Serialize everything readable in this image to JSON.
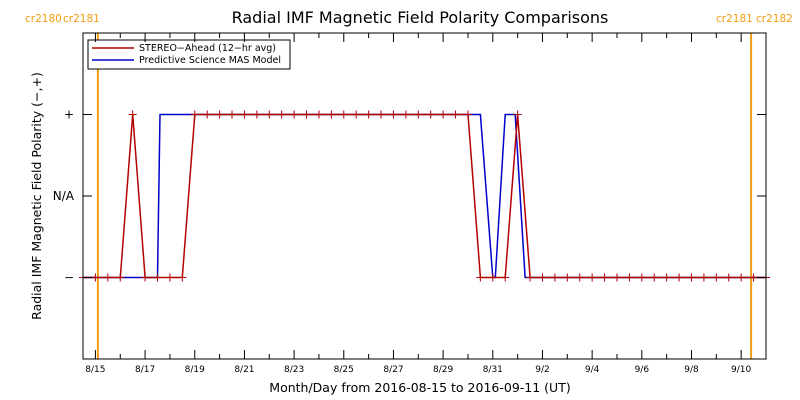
{
  "chart_data": {
    "type": "line",
    "title": "Radial IMF Magnetic Field Polarity Comparisons",
    "xlabel": "Month/Day from 2016-08-15 to 2016-09-11 (UT)",
    "ylabel": "Radial IMF Magnetic Field Polarity (−,+)",
    "x_unit": "days",
    "xlim": [
      -0.5,
      27.0
    ],
    "ylim": [
      -2,
      2
    ],
    "x_ticks": [
      {
        "x": 0,
        "label": "8/15"
      },
      {
        "x": 2,
        "label": "8/17"
      },
      {
        "x": 4,
        "label": "8/19"
      },
      {
        "x": 6,
        "label": "8/21"
      },
      {
        "x": 8,
        "label": "8/23"
      },
      {
        "x": 10,
        "label": "8/25"
      },
      {
        "x": 12,
        "label": "8/27"
      },
      {
        "x": 14,
        "label": "8/29"
      },
      {
        "x": 16,
        "label": "8/31"
      },
      {
        "x": 18,
        "label": "9/2"
      },
      {
        "x": 20,
        "label": "9/4"
      },
      {
        "x": 22,
        "label": "9/6"
      },
      {
        "x": 24,
        "label": "9/8"
      },
      {
        "x": 26,
        "label": "9/10"
      }
    ],
    "y_ticks": [
      {
        "y": 1,
        "label": "+"
      },
      {
        "y": 0,
        "label": "N/A"
      },
      {
        "y": -1,
        "label": "−"
      }
    ],
    "carrington": {
      "color": "#f39c12",
      "left_labels": [
        "cr2180",
        "cr2181"
      ],
      "right_labels": [
        "cr2181",
        "cr2182"
      ],
      "boundaries": [
        0.1,
        26.4
      ]
    },
    "legend": {
      "position": "top-left"
    },
    "series": [
      {
        "name": "STEREO−Ahead (12−hr avg)",
        "color": "#b30000",
        "markers": true,
        "x": [
          -0.5,
          0.0,
          0.5,
          1.0,
          1.5,
          2.0,
          2.5,
          3.0,
          3.5,
          4.0,
          4.5,
          5.0,
          5.5,
          6.0,
          6.5,
          7.0,
          7.5,
          8.0,
          8.5,
          9.0,
          9.5,
          10.0,
          10.5,
          11.0,
          11.5,
          12.0,
          12.5,
          13.0,
          13.5,
          14.0,
          14.5,
          15.0,
          15.5,
          16.0,
          16.5,
          17.0,
          17.5,
          18.0,
          18.5,
          19.0,
          19.5,
          20.0,
          20.5,
          21.0,
          21.5,
          22.0,
          22.5,
          23.0,
          23.5,
          24.0,
          24.5,
          25.0,
          25.5,
          26.0,
          26.5,
          27.0
        ],
        "y": [
          -1,
          -1,
          -1,
          -1,
          1,
          -1,
          -1,
          -1,
          -1,
          1,
          1,
          1,
          1,
          1,
          1,
          1,
          1,
          1,
          1,
          1,
          1,
          1,
          1,
          1,
          1,
          1,
          1,
          1,
          1,
          1,
          1,
          1,
          -1,
          -1,
          -1,
          1,
          -1,
          -1,
          -1,
          -1,
          -1,
          -1,
          -1,
          -1,
          -1,
          -1,
          -1,
          -1,
          -1,
          -1,
          -1,
          -1,
          -1,
          -1,
          -1,
          -1
        ]
      },
      {
        "name": "Predictive Science MAS Model",
        "color": "#0000cc",
        "markers": false,
        "x": [
          -0.5,
          2.5,
          2.6,
          3.1,
          3.2,
          15.4,
          15.5,
          16.0,
          16.1,
          16.5,
          16.6,
          16.8,
          16.9,
          17.3,
          17.4,
          27.0
        ],
        "y": [
          -1,
          -1,
          1,
          1,
          1,
          1,
          1,
          -1,
          -1,
          1,
          1,
          1,
          1,
          -1,
          -1,
          -1
        ]
      }
    ]
  }
}
